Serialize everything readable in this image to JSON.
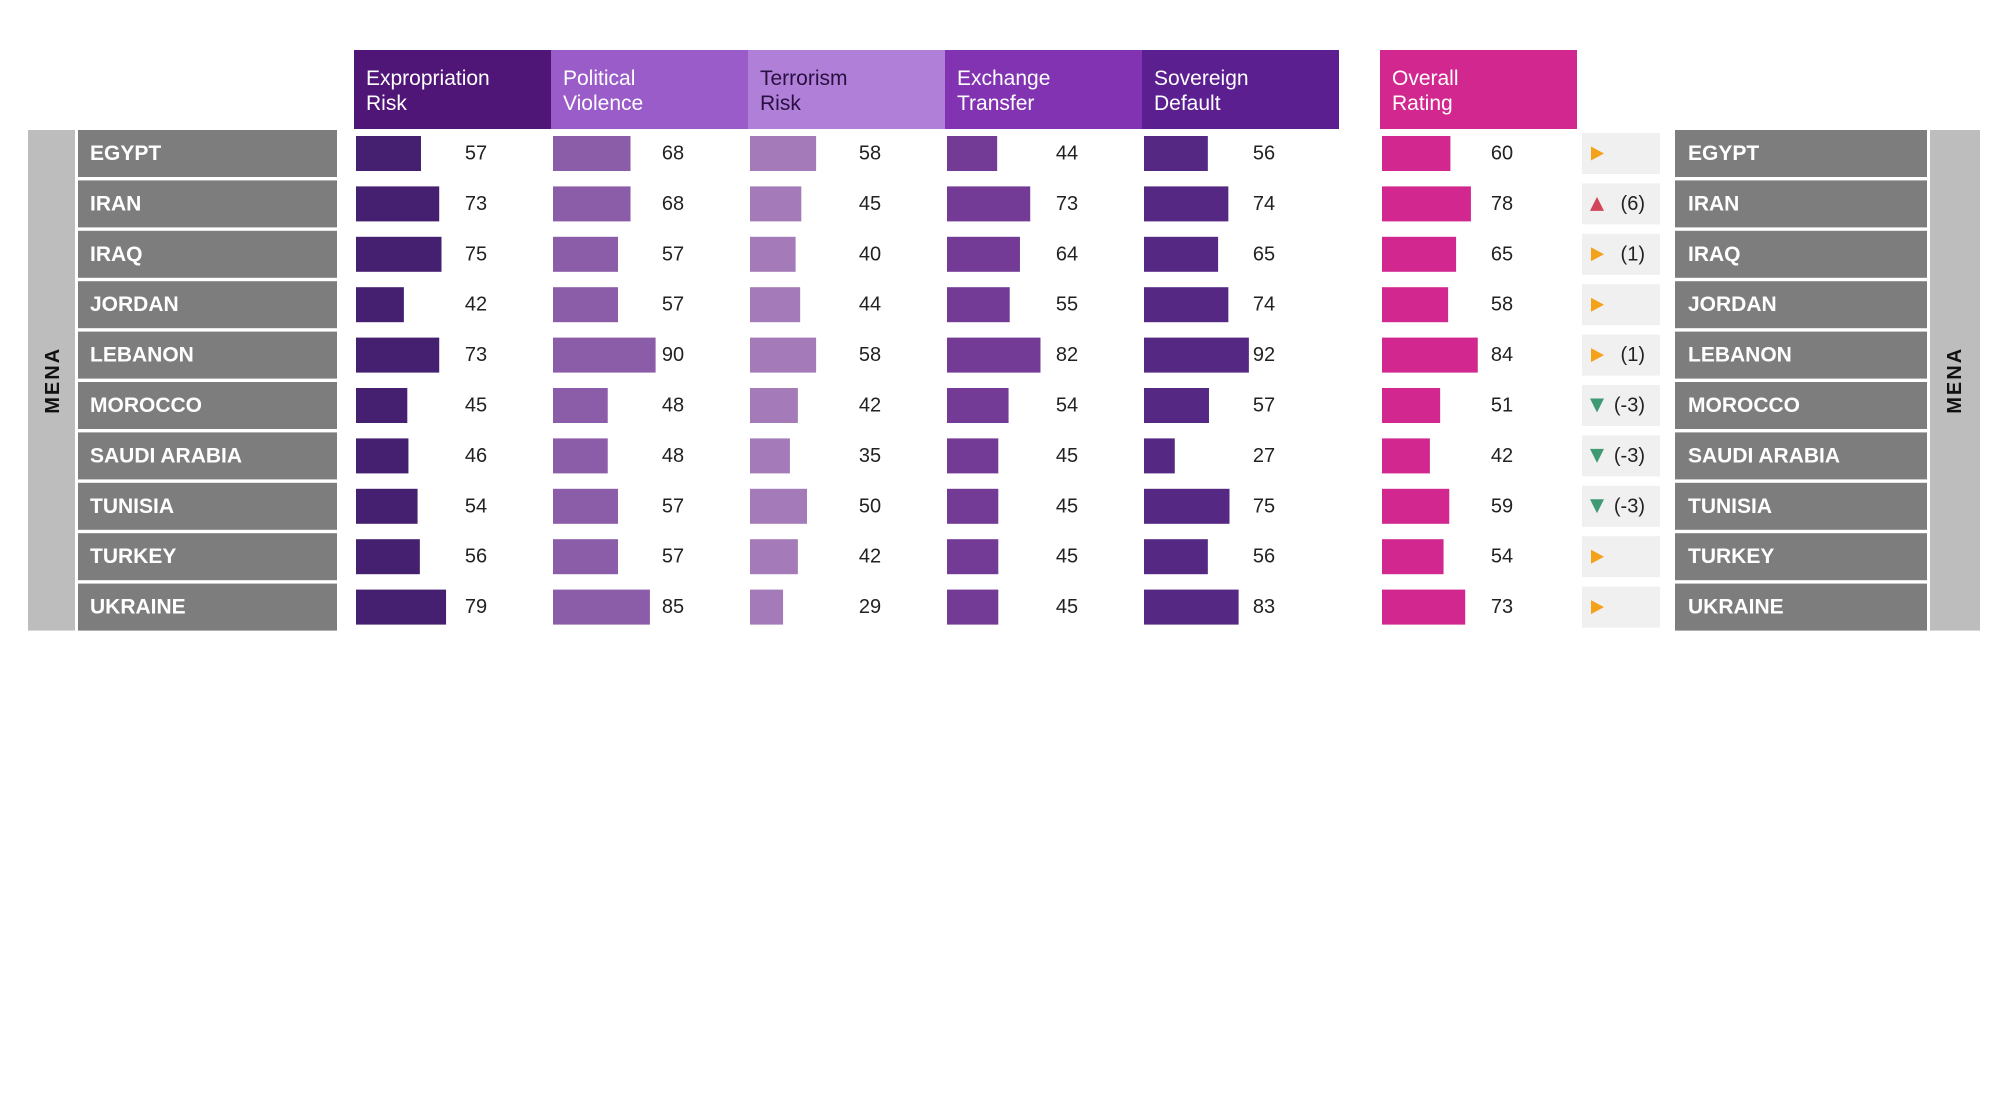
{
  "chart_data": {
    "type": "bar",
    "region": "MENA",
    "categories": [
      "EGYPT",
      "IRAN",
      "IRAQ",
      "JORDAN",
      "LEBANON",
      "MOROCCO",
      "SAUDI ARABIA",
      "TUNISIA",
      "TURKEY",
      "UKRAINE"
    ],
    "series": [
      {
        "name": "Expropriation Risk",
        "header_lines": [
          "Expropriation",
          "Risk"
        ],
        "header_color": "#4f1577",
        "bar_color": "#452070",
        "values": [
          57,
          73,
          75,
          42,
          73,
          45,
          46,
          54,
          56,
          79
        ]
      },
      {
        "name": "Political Violence",
        "header_lines": [
          "Political",
          "Violence"
        ],
        "header_color": "#9a5cc8",
        "bar_color": "#8b5ca8",
        "values": [
          68,
          68,
          57,
          57,
          90,
          48,
          48,
          57,
          57,
          85
        ]
      },
      {
        "name": "Terrorism Risk",
        "header_lines": [
          "Terrorism",
          "Risk"
        ],
        "header_color": "#b07fd8",
        "bar_color": "#a47ab8",
        "values": [
          58,
          45,
          40,
          44,
          58,
          42,
          35,
          50,
          42,
          29
        ]
      },
      {
        "name": "Exchange Transfer",
        "header_lines": [
          "Exchange",
          "Transfer"
        ],
        "header_color": "#8233b2",
        "bar_color": "#733a96",
        "values": [
          44,
          73,
          64,
          55,
          82,
          54,
          45,
          45,
          45,
          45
        ]
      },
      {
        "name": "Sovereign Default",
        "header_lines": [
          "Sovereign",
          "Default"
        ],
        "header_color": "#5c1f8f",
        "bar_color": "#552983",
        "values": [
          56,
          74,
          65,
          74,
          92,
          57,
          27,
          75,
          56,
          83
        ]
      },
      {
        "name": "Overall Rating",
        "header_lines": [
          "Overall",
          "Rating"
        ],
        "header_color": "#d1278f",
        "bar_color": "#d1278f",
        "values": [
          60,
          78,
          65,
          58,
          84,
          51,
          42,
          59,
          54,
          73
        ]
      }
    ],
    "rating_change": [
      {
        "direction": "right",
        "text": ""
      },
      {
        "direction": "up",
        "text": "(6)"
      },
      {
        "direction": "right",
        "text": "(1)"
      },
      {
        "direction": "right",
        "text": ""
      },
      {
        "direction": "right",
        "text": "(1)"
      },
      {
        "direction": "down",
        "text": "(-3)"
      },
      {
        "direction": "down",
        "text": "(-3)"
      },
      {
        "direction": "down",
        "text": "(-3)"
      },
      {
        "direction": "right",
        "text": ""
      },
      {
        "direction": "right",
        "text": ""
      }
    ],
    "colors": {
      "country_cell": "#7d7d7d",
      "region_band": "#bdbdbd",
      "change_cell": "#f0f0f0",
      "arrow_right": "#f5a21b",
      "arrow_up": "#d2455a",
      "arrow_down": "#3f9a74"
    }
  }
}
